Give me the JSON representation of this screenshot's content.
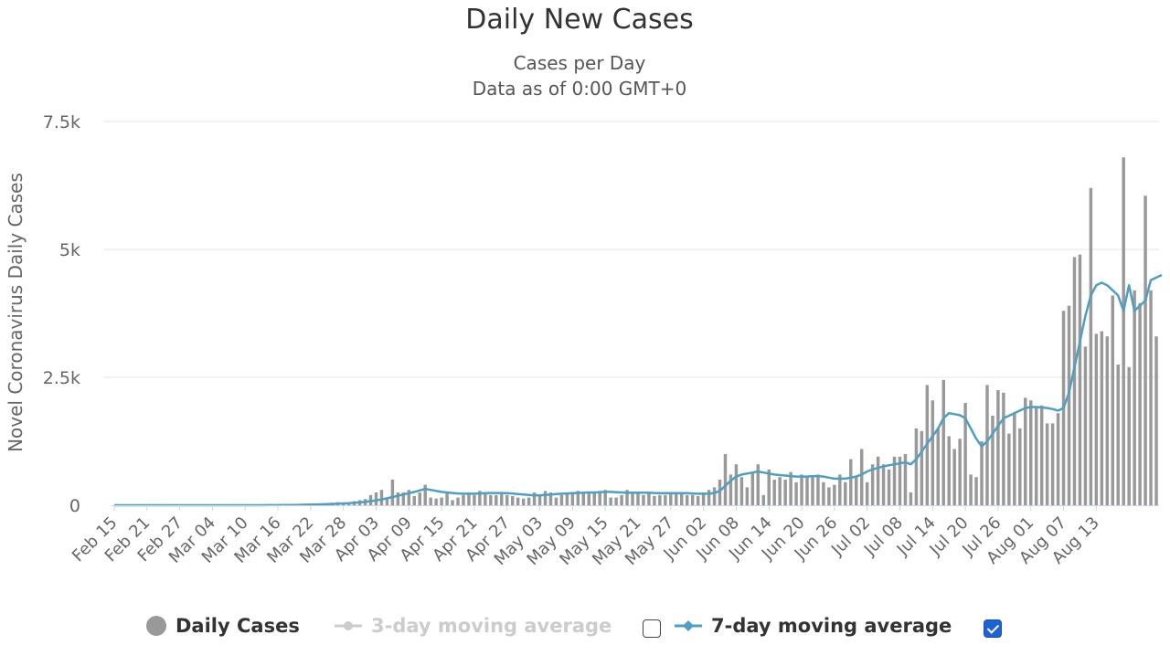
{
  "chart_data": {
    "type": "bar",
    "title": "Daily New Cases",
    "subtitle": "Cases per Day",
    "subtitle2": "Data as of 0:00 GMT+0",
    "ylabel": "Novel Coronavirus Daily Cases",
    "xlabel": "",
    "ylim": [
      0,
      7500
    ],
    "y_ticks": [
      0,
      2500,
      5000,
      7500
    ],
    "y_tick_labels": [
      "0",
      "2.5k",
      "5k",
      "7.5k"
    ],
    "x_tick_labels": [
      "Feb 15",
      "Feb 21",
      "Feb 27",
      "Mar 04",
      "Mar 10",
      "Mar 16",
      "Mar 22",
      "Mar 28",
      "Apr 03",
      "Apr 09",
      "Apr 15",
      "Apr 21",
      "Apr 27",
      "May 03",
      "May 09",
      "May 15",
      "May 21",
      "May 27",
      "Jun 02",
      "Jun 08",
      "Jun 14",
      "Jun 20",
      "Jun 26",
      "Jul 02",
      "Jul 08",
      "Jul 14",
      "Jul 20",
      "Jul 26",
      "Aug 01",
      "Aug 07",
      "Aug 13"
    ],
    "x_start": "2020-02-15",
    "x_end": "2020-08-17",
    "grid": true,
    "legend_position": "bottom",
    "colors": {
      "bars": "#999999",
      "ma3": "#cccccc",
      "ma7": "#4f9ec4"
    },
    "series": [
      {
        "name": "Daily Cases",
        "values": [
          0,
          0,
          0,
          0,
          0,
          0,
          0,
          0,
          0,
          0,
          0,
          0,
          0,
          0,
          0,
          0,
          0,
          0,
          0,
          0,
          0,
          0,
          0,
          0,
          0,
          0,
          0,
          0,
          2,
          3,
          5,
          8,
          10,
          15,
          20,
          18,
          25,
          30,
          20,
          40,
          50,
          60,
          40,
          50,
          80,
          100,
          120,
          200,
          250,
          300,
          150,
          500,
          250,
          250,
          300,
          180,
          250,
          400,
          150,
          130,
          150,
          250,
          100,
          150,
          200,
          250,
          200,
          280,
          250,
          200,
          200,
          220,
          200,
          180,
          150,
          130,
          150,
          250,
          180,
          280,
          250,
          150,
          200,
          250,
          250,
          280,
          250,
          230,
          250,
          280,
          300,
          150,
          150,
          200,
          300,
          250,
          250,
          200,
          250,
          180,
          200,
          200,
          250,
          250,
          250,
          200,
          200,
          180,
          250,
          300,
          350,
          500,
          1000,
          600,
          800,
          550,
          350,
          650,
          800,
          200,
          700,
          500,
          550,
          500,
          650,
          450,
          600,
          550,
          550,
          600,
          450,
          350,
          400,
          600,
          450,
          900,
          550,
          1100,
          450,
          800,
          950,
          800,
          700,
          950,
          950,
          1000,
          250,
          1500,
          1450,
          2350,
          2050,
          1500,
          2450,
          1350,
          1100,
          1300,
          2000,
          600,
          550,
          1250,
          2350,
          1750,
          2250,
          2200,
          1400,
          1800,
          1500,
          2100,
          2050,
          1900,
          1950,
          1600,
          1600,
          1800,
          3800,
          3900,
          4850,
          4900,
          3100,
          6200,
          3350,
          3400,
          3300,
          4100,
          2750,
          6800,
          2700,
          4200,
          3950,
          6050,
          4200,
          3300
        ],
        "_note": "one value per day from Feb 15 to Aug 17"
      },
      {
        "name": "3-day moving average",
        "visible": false
      },
      {
        "name": "7-day moving average",
        "visible": true,
        "values": [
          0,
          0,
          0,
          0,
          0,
          0,
          0,
          0,
          0,
          0,
          0,
          0,
          0,
          0,
          0,
          0,
          0,
          0,
          0,
          0,
          0,
          0,
          0,
          0,
          0,
          0,
          0,
          0,
          1,
          1,
          2,
          3,
          4,
          6,
          8,
          10,
          13,
          16,
          18,
          21,
          25,
          30,
          35,
          40,
          48,
          56,
          66,
          80,
          95,
          115,
          135,
          160,
          185,
          210,
          235,
          260,
          290,
          320,
          300,
          280,
          260,
          250,
          240,
          230,
          225,
          225,
          225,
          230,
          235,
          240,
          240,
          240,
          235,
          230,
          220,
          210,
          200,
          195,
          195,
          200,
          210,
          220,
          225,
          230,
          235,
          240,
          245,
          250,
          250,
          255,
          260,
          260,
          255,
          250,
          245,
          245,
          245,
          245,
          245,
          240,
          235,
          235,
          235,
          235,
          235,
          235,
          230,
          225,
          225,
          225,
          240,
          280,
          380,
          480,
          560,
          600,
          620,
          640,
          660,
          640,
          620,
          600,
          590,
          580,
          570,
          560,
          560,
          560,
          570,
          570,
          560,
          540,
          520,
          520,
          520,
          540,
          560,
          600,
          660,
          700,
          730,
          760,
          780,
          800,
          820,
          840,
          800,
          900,
          1050,
          1200,
          1350,
          1500,
          1700,
          1800,
          1780,
          1760,
          1700,
          1500,
          1300,
          1150,
          1250,
          1400,
          1550,
          1700,
          1750,
          1800,
          1850,
          1900,
          1920,
          1920,
          1910,
          1900,
          1880,
          1850,
          1900,
          2200,
          2700,
          3200,
          3700,
          4100,
          4300,
          4350,
          4300,
          4200,
          4100,
          3800,
          4300,
          3800,
          3900,
          4000,
          4400,
          4450,
          4500
        ]
      }
    ]
  },
  "legend": {
    "daily_cases": "Daily Cases",
    "ma3": "3-day moving average",
    "ma7": "7-day moving average"
  }
}
